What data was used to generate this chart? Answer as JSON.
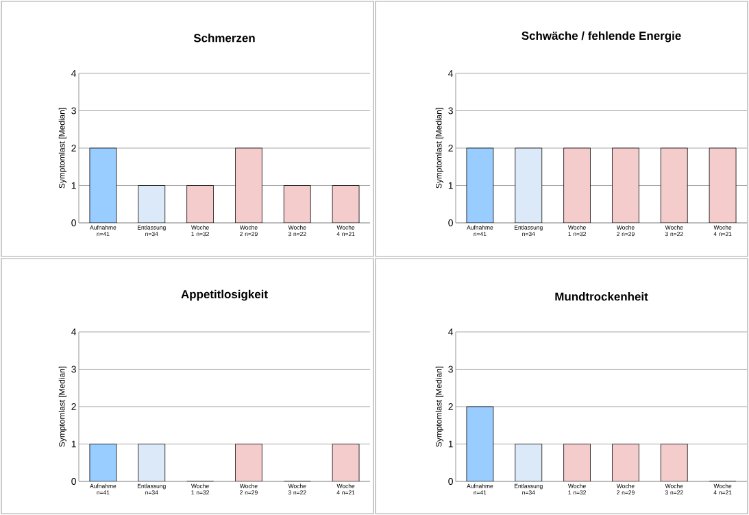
{
  "chart_data": [
    {
      "type": "bar",
      "title": "Schmerzen",
      "ylabel": "Symptomlast [Median]",
      "categories": [
        "Aufnahme n=41",
        "Entlassung n=34",
        "Woche 1 n=32",
        "Woche 2 n=29",
        "Woche 3 n=22",
        "Woche 4 n=21"
      ],
      "values": [
        2,
        1,
        1,
        2,
        1,
        1
      ],
      "colors": [
        "#99ccff",
        "#dce9f9",
        "#f4cccc",
        "#f4cccc",
        "#f4cccc",
        "#f4cccc"
      ],
      "ylim": [
        0,
        4
      ],
      "yticks": [
        0,
        1,
        2,
        3,
        4
      ],
      "grid": "y"
    },
    {
      "type": "bar",
      "title": "Schwäche / fehlende Energie",
      "ylabel": "Symptomlast [Median]",
      "categories": [
        "Aufnahme n=41",
        "Entlassung n=34",
        "Woche 1 n=32",
        "Woche 2 n=29",
        "Woche 3 n=22",
        "Woche 4 n=21"
      ],
      "values": [
        2,
        2,
        2,
        2,
        2,
        2
      ],
      "colors": [
        "#99ccff",
        "#dce9f9",
        "#f4cccc",
        "#f4cccc",
        "#f4cccc",
        "#f4cccc"
      ],
      "ylim": [
        0,
        4
      ],
      "yticks": [
        0,
        1,
        2,
        3,
        4
      ],
      "grid": "y"
    },
    {
      "type": "bar",
      "title": "Appetitlosigkeit",
      "ylabel": "Symptomlast [Median]",
      "categories": [
        "Aufnahme n=41",
        "Entlassung n=34",
        "Woche 1 n=32",
        "Woche 2 n=29",
        "Woche 3 n=22",
        "Woche 4 n=21"
      ],
      "values": [
        1,
        1,
        0,
        1,
        0,
        1
      ],
      "colors": [
        "#99ccff",
        "#dce9f9",
        "#f4cccc",
        "#f4cccc",
        "#f4cccc",
        "#f4cccc"
      ],
      "ylim": [
        0,
        4
      ],
      "yticks": [
        0,
        1,
        2,
        3,
        4
      ],
      "grid": "y"
    },
    {
      "type": "bar",
      "title": "Mundtrockenheit",
      "ylabel": "Symptomlast [Median]",
      "categories": [
        "Aufnahme n=41",
        "Entlassung n=34",
        "Woche 1 n=32",
        "Woche 2 n=29",
        "Woche 3 n=22",
        "Woche 4 n=21"
      ],
      "values": [
        2,
        1,
        1,
        1,
        1,
        0
      ],
      "colors": [
        "#99ccff",
        "#dce9f9",
        "#f4cccc",
        "#f4cccc",
        "#f4cccc",
        "#f4cccc"
      ],
      "ylim": [
        0,
        4
      ],
      "yticks": [
        0,
        1,
        2,
        3,
        4
      ],
      "grid": "y"
    }
  ]
}
